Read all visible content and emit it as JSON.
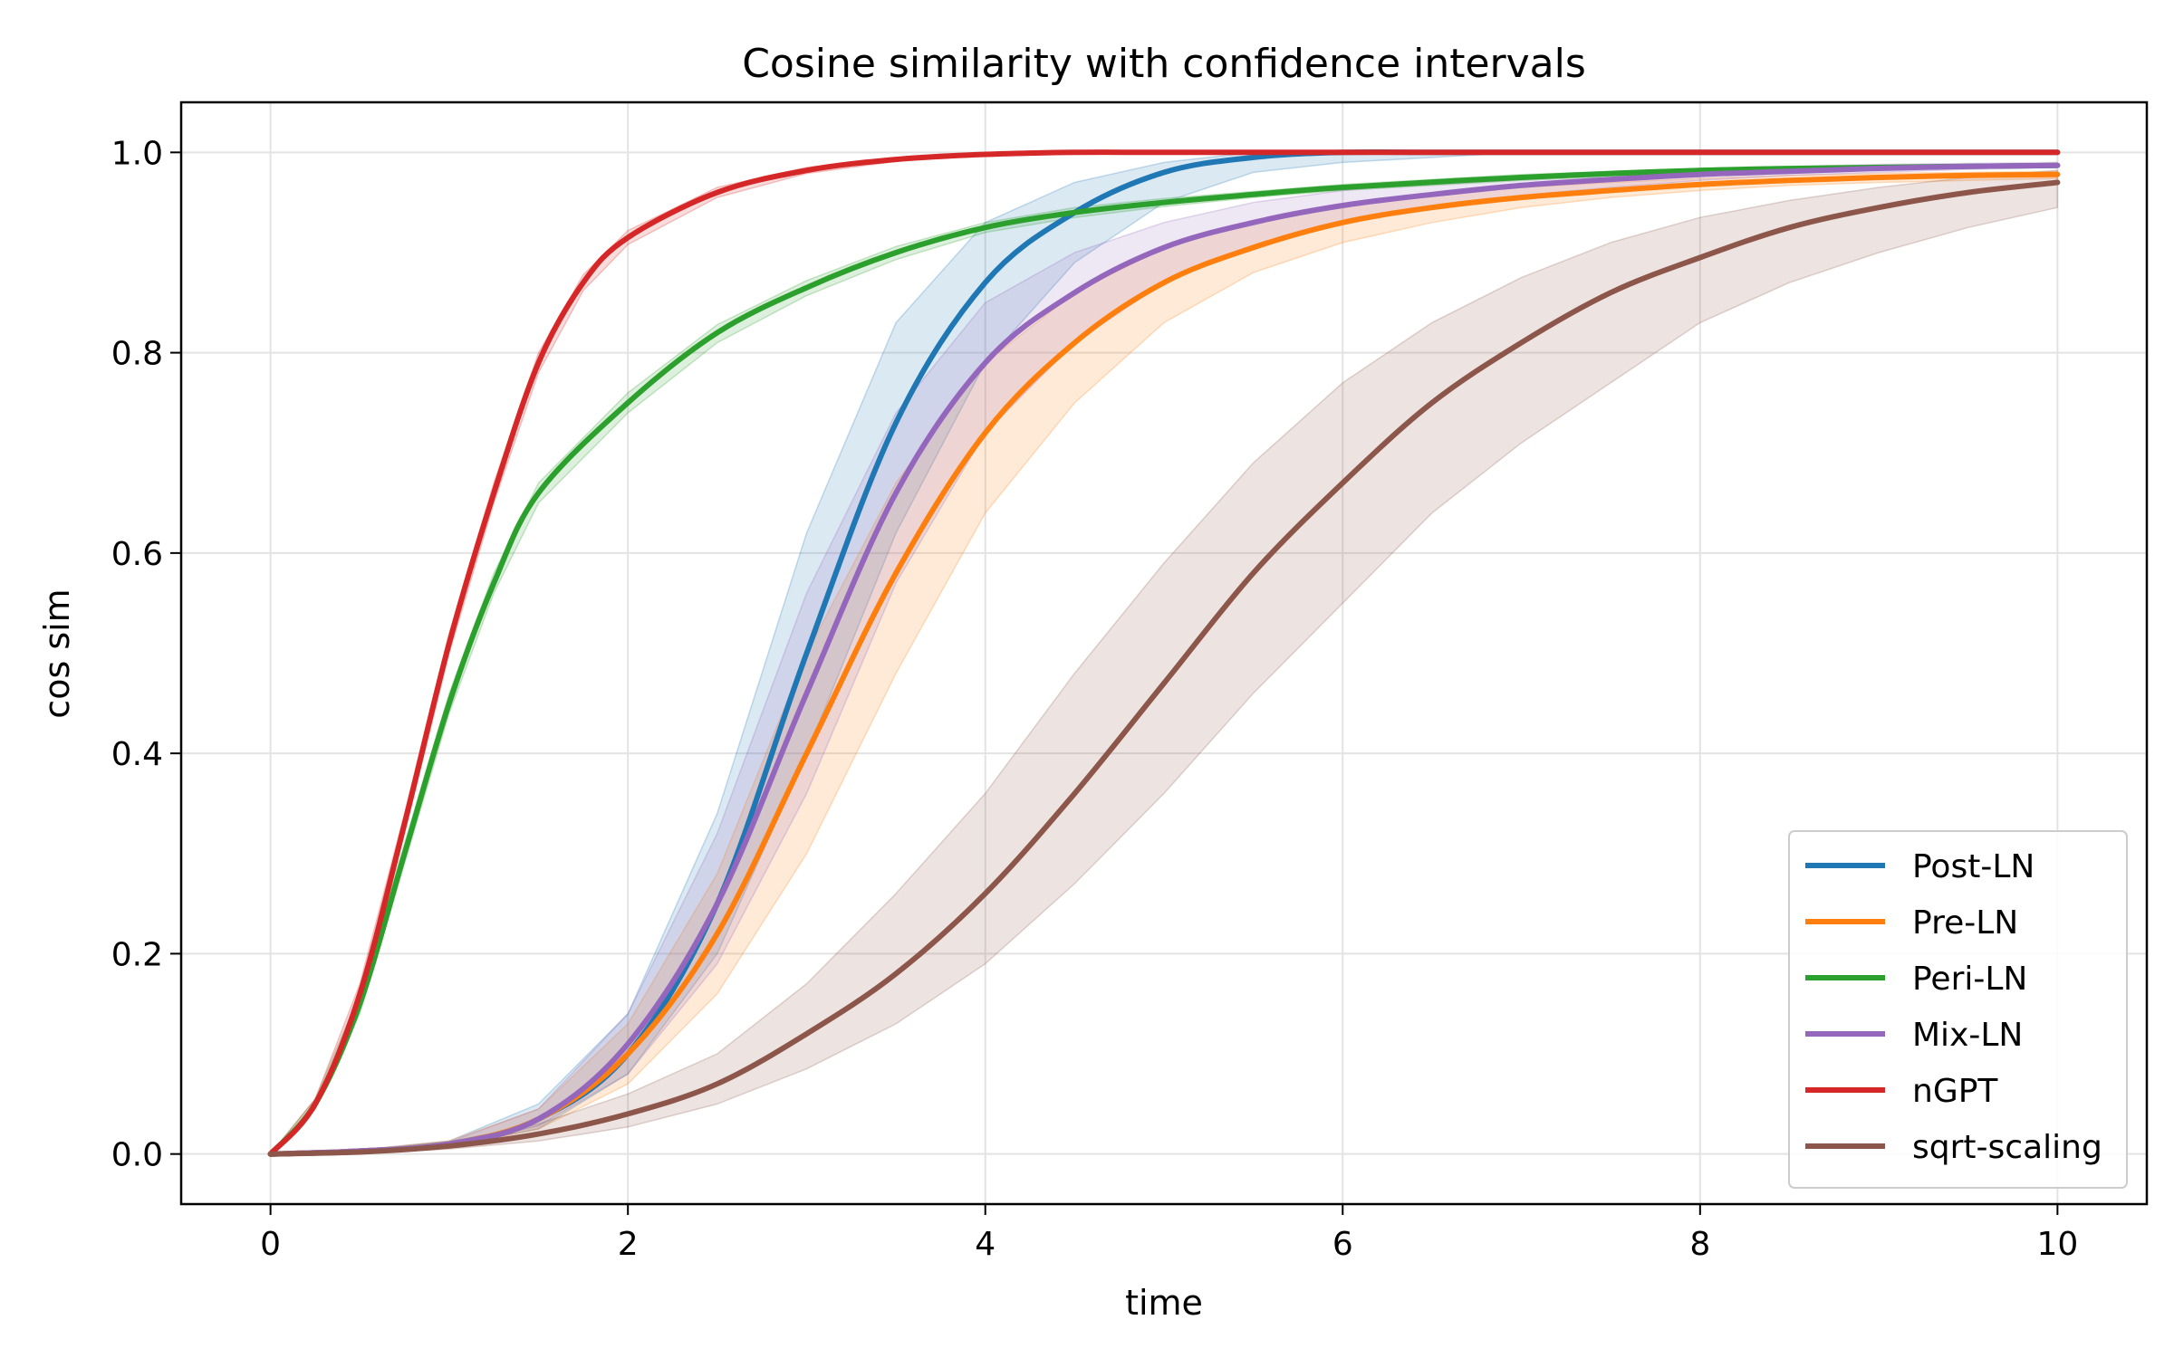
{
  "chart_data": {
    "type": "line",
    "title": "Cosine similarity with confidence intervals",
    "xlabel": "time",
    "ylabel": "cos sim",
    "xlim": [
      -0.5,
      10.5
    ],
    "ylim": [
      -0.05,
      1.05
    ],
    "xticks": [
      0,
      2,
      4,
      6,
      8,
      10
    ],
    "xtick_labels": [
      "0",
      "2",
      "4",
      "6",
      "8",
      "10"
    ],
    "yticks": [
      0.0,
      0.2,
      0.4,
      0.6,
      0.8,
      1.0
    ],
    "ytick_labels": [
      "0.0",
      "0.2",
      "0.4",
      "0.6",
      "0.8",
      "1.0"
    ],
    "grid": true,
    "legend_position": "lower-right",
    "series": [
      {
        "name": "Post-LN",
        "color": "#1f77b4",
        "x": [
          0,
          0.5,
          1,
          1.5,
          2,
          2.5,
          3,
          3.5,
          4,
          4.5,
          5,
          5.5,
          6,
          6.5,
          7,
          7.5,
          8,
          8.5,
          9,
          9.5,
          10
        ],
        "y": [
          0,
          0.003,
          0.01,
          0.035,
          0.1,
          0.25,
          0.5,
          0.73,
          0.87,
          0.94,
          0.98,
          0.995,
          1.0,
          1.0,
          1.0,
          1.0,
          1.0,
          1.0,
          1.0,
          1.0,
          1.0
        ],
        "lower": [
          0,
          0.002,
          0.008,
          0.025,
          0.08,
          0.2,
          0.4,
          0.62,
          0.79,
          0.89,
          0.95,
          0.98,
          0.99,
          0.995,
          1.0,
          1.0,
          1.0,
          1.0,
          1.0,
          1.0,
          1.0
        ],
        "upper": [
          0,
          0.004,
          0.013,
          0.05,
          0.14,
          0.34,
          0.62,
          0.83,
          0.93,
          0.97,
          0.99,
          1.0,
          1.0,
          1.0,
          1.0,
          1.0,
          1.0,
          1.0,
          1.0,
          1.0,
          1.0
        ]
      },
      {
        "name": "Pre-LN",
        "color": "#ff7f0e",
        "x": [
          0,
          0.5,
          1,
          1.5,
          2,
          2.5,
          3,
          3.5,
          4,
          4.5,
          5,
          5.5,
          6,
          6.5,
          7,
          7.5,
          8,
          8.5,
          9,
          9.5,
          10
        ],
        "y": [
          0,
          0.003,
          0.01,
          0.035,
          0.1,
          0.22,
          0.4,
          0.58,
          0.72,
          0.81,
          0.87,
          0.905,
          0.93,
          0.945,
          0.955,
          0.962,
          0.968,
          0.972,
          0.975,
          0.977,
          0.978
        ],
        "lower": [
          0,
          0.002,
          0.007,
          0.025,
          0.07,
          0.16,
          0.3,
          0.48,
          0.64,
          0.75,
          0.83,
          0.88,
          0.91,
          0.93,
          0.945,
          0.955,
          0.962,
          0.967,
          0.97,
          0.972,
          0.974
        ],
        "upper": [
          0,
          0.004,
          0.013,
          0.045,
          0.13,
          0.28,
          0.5,
          0.67,
          0.79,
          0.86,
          0.905,
          0.93,
          0.948,
          0.958,
          0.965,
          0.97,
          0.974,
          0.977,
          0.979,
          0.98,
          0.981
        ]
      },
      {
        "name": "Peri-LN",
        "color": "#2ca02c",
        "x": [
          0,
          0.25,
          0.5,
          0.75,
          1,
          1.25,
          1.5,
          2,
          2.5,
          3,
          3.5,
          4,
          4.5,
          5,
          5.5,
          6,
          7,
          8,
          9,
          10
        ],
        "y": [
          0,
          0.05,
          0.15,
          0.3,
          0.45,
          0.57,
          0.66,
          0.75,
          0.82,
          0.865,
          0.9,
          0.925,
          0.94,
          0.95,
          0.958,
          0.965,
          0.975,
          0.982,
          0.985,
          0.987
        ],
        "lower": [
          0,
          0.045,
          0.14,
          0.29,
          0.44,
          0.56,
          0.65,
          0.74,
          0.81,
          0.857,
          0.893,
          0.92,
          0.935,
          0.946,
          0.955,
          0.962,
          0.972,
          0.98,
          0.983,
          0.985
        ],
        "upper": [
          0,
          0.055,
          0.16,
          0.31,
          0.46,
          0.58,
          0.67,
          0.76,
          0.828,
          0.872,
          0.906,
          0.93,
          0.945,
          0.954,
          0.961,
          0.968,
          0.978,
          0.984,
          0.987,
          0.989
        ]
      },
      {
        "name": "Mix-LN",
        "color": "#9467bd",
        "x": [
          0,
          0.5,
          1,
          1.5,
          2,
          2.5,
          3,
          3.5,
          4,
          4.5,
          5,
          5.5,
          6,
          6.5,
          7,
          7.5,
          8,
          8.5,
          9,
          9.5,
          10
        ],
        "y": [
          0,
          0.003,
          0.01,
          0.035,
          0.11,
          0.25,
          0.46,
          0.66,
          0.79,
          0.86,
          0.905,
          0.93,
          0.947,
          0.958,
          0.967,
          0.973,
          0.978,
          0.981,
          0.984,
          0.986,
          0.987
        ],
        "lower": [
          0,
          0.002,
          0.008,
          0.028,
          0.08,
          0.19,
          0.36,
          0.57,
          0.72,
          0.81,
          0.87,
          0.905,
          0.93,
          0.945,
          0.957,
          0.965,
          0.972,
          0.977,
          0.98,
          0.983,
          0.985
        ],
        "upper": [
          0,
          0.004,
          0.012,
          0.045,
          0.14,
          0.32,
          0.56,
          0.74,
          0.85,
          0.9,
          0.93,
          0.95,
          0.962,
          0.97,
          0.976,
          0.98,
          0.984,
          0.986,
          0.988,
          0.989,
          0.99
        ]
      },
      {
        "name": "nGPT",
        "color": "#d62728",
        "x": [
          0,
          0.25,
          0.5,
          0.75,
          1,
          1.25,
          1.5,
          1.75,
          2,
          2.5,
          3,
          3.5,
          4,
          4.5,
          5,
          6,
          7,
          8,
          9,
          10
        ],
        "y": [
          0,
          0.05,
          0.16,
          0.33,
          0.51,
          0.66,
          0.79,
          0.87,
          0.915,
          0.96,
          0.982,
          0.993,
          0.998,
          1.0,
          1.0,
          1.0,
          1.0,
          1.0,
          1.0,
          1.0
        ],
        "lower": [
          0,
          0.045,
          0.15,
          0.32,
          0.5,
          0.65,
          0.78,
          0.862,
          0.908,
          0.955,
          0.979,
          0.991,
          0.997,
          0.999,
          1.0,
          1.0,
          1.0,
          1.0,
          1.0,
          1.0
        ],
        "upper": [
          0,
          0.055,
          0.17,
          0.34,
          0.52,
          0.67,
          0.8,
          0.878,
          0.922,
          0.965,
          0.985,
          0.995,
          0.999,
          1.0,
          1.0,
          1.0,
          1.0,
          1.0,
          1.0,
          1.0
        ]
      },
      {
        "name": "sqrt-scaling",
        "color": "#8c564b",
        "x": [
          0,
          0.5,
          1,
          1.5,
          2,
          2.5,
          3,
          3.5,
          4,
          4.5,
          5,
          5.5,
          6,
          6.5,
          7,
          7.5,
          8,
          8.5,
          9,
          9.5,
          10
        ],
        "y": [
          0,
          0.002,
          0.008,
          0.02,
          0.04,
          0.07,
          0.12,
          0.18,
          0.26,
          0.36,
          0.47,
          0.58,
          0.67,
          0.75,
          0.81,
          0.86,
          0.895,
          0.925,
          0.945,
          0.96,
          0.97
        ],
        "lower": [
          0,
          0.001,
          0.005,
          0.013,
          0.027,
          0.05,
          0.085,
          0.13,
          0.19,
          0.27,
          0.36,
          0.46,
          0.55,
          0.64,
          0.71,
          0.77,
          0.83,
          0.87,
          0.9,
          0.925,
          0.945
        ],
        "upper": [
          0,
          0.003,
          0.012,
          0.03,
          0.06,
          0.1,
          0.17,
          0.26,
          0.36,
          0.48,
          0.59,
          0.69,
          0.77,
          0.83,
          0.875,
          0.91,
          0.935,
          0.952,
          0.965,
          0.975,
          0.982
        ]
      }
    ]
  }
}
